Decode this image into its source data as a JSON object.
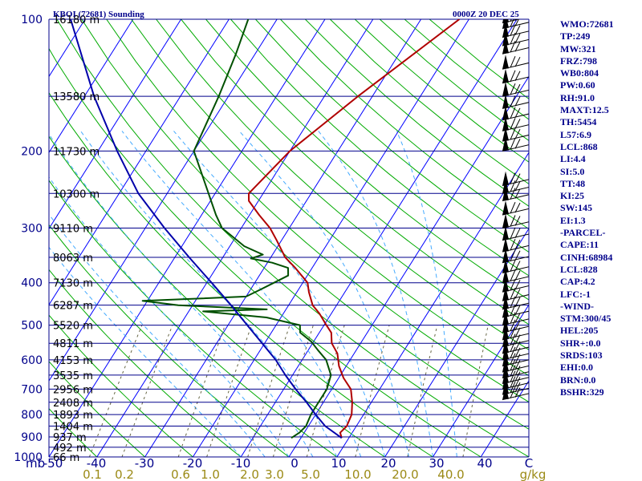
{
  "header": {
    "station": "KBOI (72681) Sounding",
    "time": "0000Z 20 DEC 25"
  },
  "indices": [
    "WMO:72681",
    "TP:249",
    "MW:321",
    "FRZ:798",
    "WB0:804",
    "PW:0.60",
    "RH:91.0",
    "MAXT:12.5",
    "TH:5454",
    "L57:6.9",
    "LCL:868",
    "LI:4.4",
    "SI:5.0",
    "TT:48",
    "KI:25",
    "SW:145",
    "EI:1.3",
    "-PARCEL-",
    "CAPE:11",
    "CINH:68984",
    "LCL:828",
    "CAP:4.2",
    "LFC:-1",
    "-WIND-",
    "STM:300/45",
    "HEL:205",
    "SHR+:0.0",
    "SRDS:103",
    "EHI:0.0",
    "BRN:0.0",
    "BSHR:329"
  ],
  "colors": {
    "isobar": "#00008b",
    "isotherm": "#0000ff",
    "dry_adiabat": "#00aa00",
    "moist_adiabat": "#44aaff",
    "mixing_ratio": "#666644",
    "temperature": "#b00000",
    "dewpoint": "#005000",
    "parcel": "#0000aa",
    "mixing_label": "#9b8a16",
    "text": "#00008b"
  },
  "chart_data": {
    "type": "line",
    "title": "KBOI (72681) Sounding",
    "x_axis": {
      "label": "C",
      "min": -50,
      "max": 50,
      "ticks": [
        "-50",
        "-40",
        "-30",
        "-20",
        "-10",
        "0",
        "10",
        "20",
        "30",
        "40",
        "C"
      ]
    },
    "y_axis": {
      "label": "mb",
      "scale": "log-pressure",
      "min": 1000,
      "max": 100,
      "tick_labels": [
        "100",
        "200",
        "300",
        "400",
        "500",
        "600",
        "700",
        "800",
        "900",
        "1000"
      ]
    },
    "mixing_ratio_axis": {
      "label": "g/kg",
      "ticks": [
        "0.1",
        "0.2",
        "0.6",
        "1.0",
        "2.0",
        "3.0",
        "5.0",
        "10.0",
        "20.0",
        "40.0"
      ]
    },
    "pressure_levels": [
      {
        "p": 100,
        "height": "16180 m"
      },
      {
        "p": 150,
        "height": "13580 m"
      },
      {
        "p": 200,
        "height": "11730 m"
      },
      {
        "p": 250,
        "height": "10300 m"
      },
      {
        "p": 300,
        "height": "9110 m"
      },
      {
        "p": 350,
        "height": "8063 m"
      },
      {
        "p": 400,
        "height": "7130 m"
      },
      {
        "p": 450,
        "height": "6287 m"
      },
      {
        "p": 500,
        "height": "5520 m"
      },
      {
        "p": 550,
        "height": "4811 m"
      },
      {
        "p": 600,
        "height": "4153 m"
      },
      {
        "p": 650,
        "height": "3535 m"
      },
      {
        "p": 700,
        "height": "2956 m"
      },
      {
        "p": 750,
        "height": "2408 m"
      },
      {
        "p": 800,
        "height": "1893 m"
      },
      {
        "p": 850,
        "height": "1404 m"
      },
      {
        "p": 900,
        "height": "937 m"
      },
      {
        "p": 950,
        "height": "492 m"
      },
      {
        "p": 1000,
        "height": "66 m"
      }
    ],
    "series": [
      {
        "name": "Temperature",
        "color": "#b00000",
        "points": [
          [
            905,
            8.5
          ],
          [
            880,
            7.5
          ],
          [
            850,
            8.0
          ],
          [
            800,
            7.5
          ],
          [
            750,
            6.0
          ],
          [
            700,
            4.0
          ],
          [
            660,
            1.0
          ],
          [
            620,
            -1.5
          ],
          [
            580,
            -3.5
          ],
          [
            550,
            -6.0
          ],
          [
            520,
            -7.5
          ],
          [
            500,
            -9.5
          ],
          [
            470,
            -12.5
          ],
          [
            450,
            -15.0
          ],
          [
            420,
            -17.5
          ],
          [
            400,
            -19.0
          ],
          [
            370,
            -23.5
          ],
          [
            350,
            -27.0
          ],
          [
            320,
            -31.0
          ],
          [
            300,
            -34.0
          ],
          [
            280,
            -38.0
          ],
          [
            260,
            -42.0
          ],
          [
            250,
            -43.0
          ],
          [
            200,
            -40.0
          ],
          [
            150,
            -33.0
          ],
          [
            100,
            -22.0
          ]
        ]
      },
      {
        "name": "Dewpoint",
        "color": "#005000",
        "points": [
          [
            905,
            -2.0
          ],
          [
            880,
            -1.0
          ],
          [
            850,
            -0.5
          ],
          [
            800,
            -1.0
          ],
          [
            760,
            -1.0
          ],
          [
            700,
            -1.0
          ],
          [
            650,
            -2.0
          ],
          [
            600,
            -5.0
          ],
          [
            570,
            -8.0
          ],
          [
            545,
            -10.5
          ],
          [
            520,
            -14.0
          ],
          [
            500,
            -15.0
          ],
          [
            480,
            -23.0
          ],
          [
            465,
            -37.0
          ],
          [
            460,
            -24.0
          ],
          [
            450,
            -43.0
          ],
          [
            440,
            -51.0
          ],
          [
            430,
            -30.0
          ],
          [
            415,
            -28.0
          ],
          [
            400,
            -26.0
          ],
          [
            385,
            -24.0
          ],
          [
            370,
            -25.0
          ],
          [
            360,
            -29.0
          ],
          [
            352,
            -34.0
          ],
          [
            345,
            -32.0
          ],
          [
            330,
            -37.0
          ],
          [
            300,
            -44.0
          ],
          [
            280,
            -47.0
          ],
          [
            200,
            -60.0
          ],
          [
            150,
            -62.0
          ],
          [
            120,
            -64.0
          ],
          [
            100,
            -66.0
          ]
        ]
      },
      {
        "name": "Parcel",
        "color": "#0000aa",
        "points": [
          [
            905,
            8.5
          ],
          [
            850,
            3.5
          ],
          [
            800,
            0.0
          ],
          [
            750,
            -3.5
          ],
          [
            700,
            -7.5
          ],
          [
            650,
            -11.5
          ],
          [
            600,
            -15.5
          ],
          [
            550,
            -20.5
          ],
          [
            500,
            -26.0
          ],
          [
            450,
            -32.0
          ],
          [
            400,
            -39.0
          ],
          [
            350,
            -47.0
          ],
          [
            300,
            -56.0
          ],
          [
            250,
            -66.0
          ],
          [
            200,
            -76.0
          ],
          [
            150,
            -88.0
          ],
          [
            100,
            -103.0
          ]
        ]
      }
    ]
  }
}
